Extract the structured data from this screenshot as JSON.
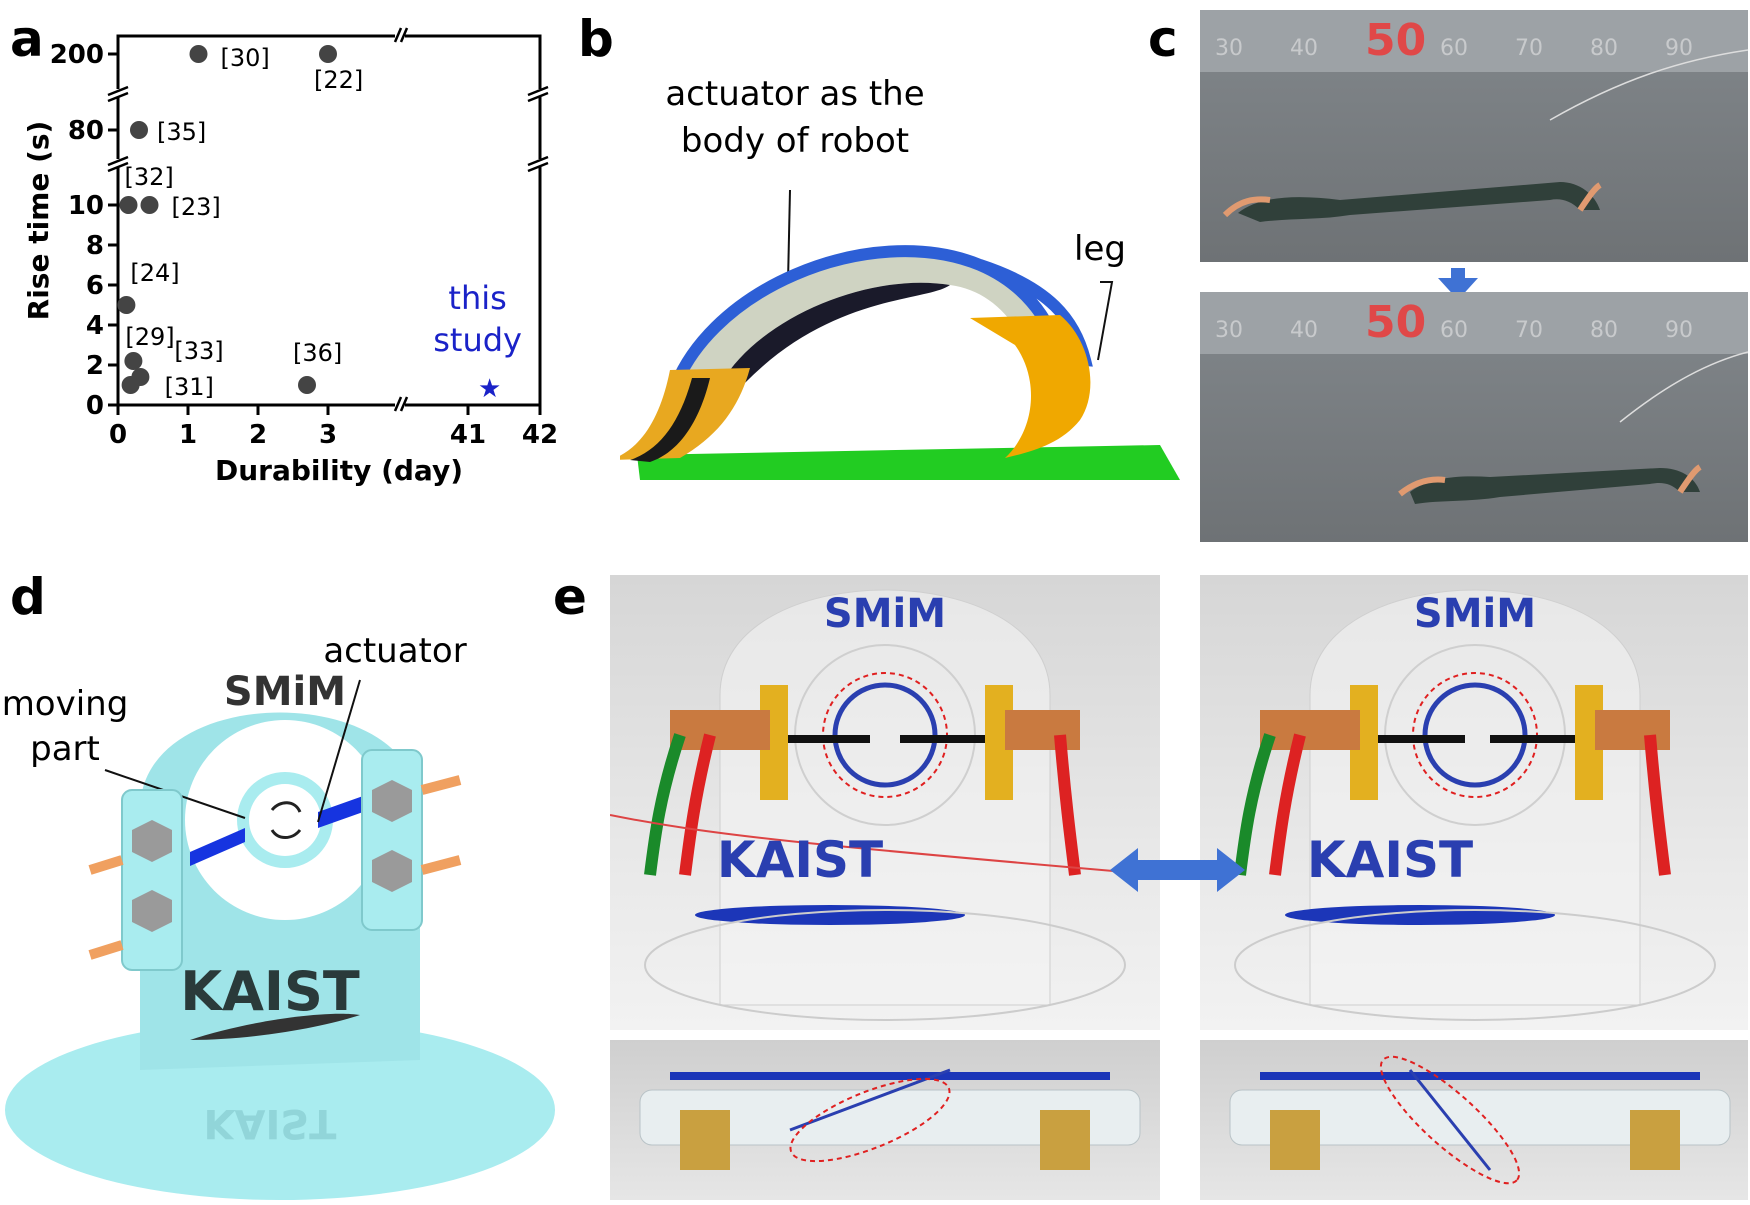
{
  "panels": {
    "a": "a",
    "b": "b",
    "c": "c",
    "d": "d",
    "e": "e"
  },
  "chart_data": {
    "type": "scatter",
    "xlabel": "Durability (day)",
    "ylabel": "Rise time (s)",
    "x_axis_broken": true,
    "y_axis_broken": true,
    "x_ticks": [
      "0",
      "1",
      "2",
      "3",
      "41",
      "42"
    ],
    "y_ticks": [
      "0",
      "2",
      "4",
      "6",
      "8",
      "10",
      "80",
      "200"
    ],
    "points": [
      {
        "label": "[30]",
        "x": 1.15,
        "y": 200
      },
      {
        "label": "[22]",
        "x": 3.0,
        "y": 200
      },
      {
        "label": "[35]",
        "x": 0.3,
        "y": 80
      },
      {
        "label": "[32]",
        "x": 0.15,
        "y": 10
      },
      {
        "label": "[23]",
        "x": 0.45,
        "y": 10
      },
      {
        "label": "[24]",
        "x": 0.12,
        "y": 5
      },
      {
        "label": "[29]",
        "x": 0.22,
        "y": 2.2
      },
      {
        "label": "[33]",
        "x": 0.32,
        "y": 1.4
      },
      {
        "label": "[31]",
        "x": 0.18,
        "y": 1.0
      },
      {
        "label": "[36]",
        "x": 2.7,
        "y": 1.0
      }
    ],
    "highlight": {
      "label_line1": "this",
      "label_line2": "study",
      "x": 41.3,
      "y": 0.9,
      "marker": "star",
      "color": "#1a22c8"
    },
    "point_color": "#444444",
    "grid": false
  },
  "panel_b": {
    "label_actuator_line1": "actuator as the",
    "label_actuator_line2": "body of robot",
    "label_leg": "leg",
    "colors": {
      "body": "#2d5fd6",
      "leg": "#f0a800",
      "ground": "#22cc22"
    }
  },
  "panel_c": {
    "ruler_marks": [
      "30",
      "40",
      "50",
      "60",
      "70",
      "80",
      "90"
    ],
    "arrow_color": "#3f72d4"
  },
  "panel_d": {
    "label_moving_line1": "moving",
    "label_moving_line2": "part",
    "label_actuator": "actuator",
    "logo_top": "SMiM",
    "logo_bottom": "KAIST",
    "logo_bottom_reflection": "KAIST",
    "colors": {
      "acrylic": "#a9ecef",
      "actuator": "#1634e0",
      "copper": "#f0a060"
    }
  },
  "panel_e": {
    "logo_top": "SMiM",
    "logo_bottom": "KAIST",
    "arrow_color": "#3f72d4"
  }
}
